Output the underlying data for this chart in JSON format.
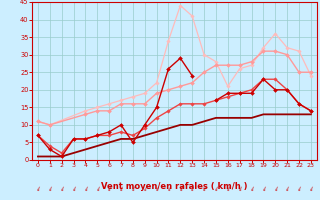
{
  "xlabel": "Vent moyen/en rafales ( km/h )",
  "xlim": [
    -0.5,
    23.5
  ],
  "ylim": [
    0,
    45
  ],
  "yticks": [
    0,
    5,
    10,
    15,
    20,
    25,
    30,
    35,
    40,
    45
  ],
  "xticks": [
    0,
    1,
    2,
    3,
    4,
    5,
    6,
    7,
    8,
    9,
    10,
    11,
    12,
    13,
    14,
    15,
    16,
    17,
    18,
    19,
    20,
    21,
    22,
    23
  ],
  "background_color": "#cceeff",
  "grid_color": "#99cccc",
  "lines": [
    {
      "x": [
        0,
        1,
        2,
        3,
        4,
        5,
        6,
        7,
        8,
        9,
        10,
        11,
        12,
        13
      ],
      "y": [
        7,
        3,
        1,
        6,
        6,
        7,
        8,
        10,
        5,
        10,
        15,
        26,
        29,
        24
      ],
      "color": "#cc0000",
      "linewidth": 1.0,
      "marker": "D",
      "markersize": 2.0,
      "zorder": 5
    },
    {
      "x": [
        15,
        16,
        17,
        18,
        19,
        20,
        21,
        22,
        23
      ],
      "y": [
        17,
        19,
        19,
        19,
        23,
        20,
        20,
        16,
        14
      ],
      "color": "#cc0000",
      "linewidth": 1.0,
      "marker": "D",
      "markersize": 2.0,
      "zorder": 5
    },
    {
      "x": [
        0,
        1,
        4,
        5,
        6,
        7,
        8,
        9,
        10,
        11,
        12,
        13,
        14,
        15,
        16,
        17,
        18,
        19,
        20,
        21,
        22,
        23
      ],
      "y": [
        11,
        10,
        13,
        14,
        14,
        16,
        16,
        16,
        19,
        20,
        21,
        22,
        25,
        27,
        27,
        27,
        28,
        31,
        31,
        30,
        25,
        25
      ],
      "color": "#ff9999",
      "linewidth": 1.0,
      "marker": "D",
      "markersize": 2.0,
      "zorder": 4
    },
    {
      "x": [
        0,
        1,
        4,
        5,
        6,
        7,
        8,
        9,
        10,
        11,
        12,
        13,
        14,
        15,
        16,
        17,
        18,
        19,
        20,
        21,
        22,
        23
      ],
      "y": [
        11,
        10,
        14,
        15,
        16,
        17,
        18,
        19,
        22,
        34,
        44,
        41,
        30,
        28,
        21,
        26,
        27,
        32,
        36,
        32,
        31,
        24
      ],
      "color": "#ffbbbb",
      "linewidth": 0.9,
      "marker": "D",
      "markersize": 1.8,
      "zorder": 3
    },
    {
      "x": [
        0,
        1,
        2,
        3,
        4,
        5,
        6,
        7,
        8,
        9,
        10,
        11,
        12,
        13,
        14,
        15,
        16,
        17,
        18,
        19,
        20,
        21,
        22,
        23
      ],
      "y": [
        7,
        4,
        2,
        6,
        6,
        7,
        7,
        8,
        7,
        9,
        12,
        14,
        16,
        16,
        16,
        17,
        18,
        19,
        20,
        23,
        23,
        20,
        16,
        14
      ],
      "color": "#ee4444",
      "linewidth": 1.0,
      "marker": "D",
      "markersize": 1.8,
      "zorder": 4
    },
    {
      "x": [
        0,
        1,
        2,
        3,
        4,
        5,
        6,
        7,
        8,
        9,
        10,
        11,
        12,
        13,
        14,
        15,
        16,
        17,
        18,
        19,
        20,
        21,
        22,
        23
      ],
      "y": [
        1,
        1,
        1,
        2,
        3,
        4,
        5,
        6,
        6,
        7,
        8,
        9,
        10,
        10,
        11,
        12,
        12,
        12,
        12,
        13,
        13,
        13,
        13,
        13
      ],
      "color": "#990000",
      "linewidth": 1.3,
      "marker": null,
      "markersize": 0,
      "zorder": 3
    }
  ],
  "tick_color": "#cc0000",
  "label_color": "#cc0000",
  "axis_color": "#cc0000"
}
